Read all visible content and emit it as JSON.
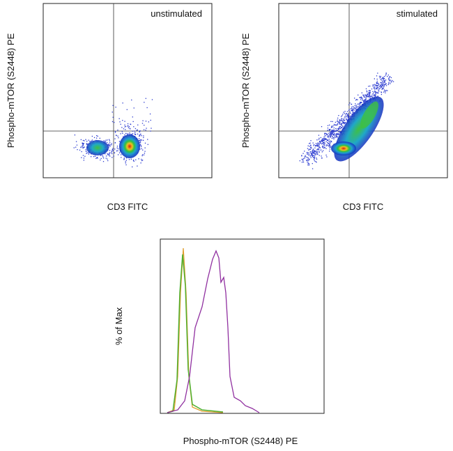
{
  "panels": [
    {
      "label": "unstimulated",
      "x_axis_label": "CD3 FITC",
      "y_axis_label": "Phospho-mTOR (S2448) PE"
    },
    {
      "label": "stimulated",
      "x_axis_label": "CD3 FITC",
      "y_axis_label": "Phospho-mTOR (S2448) PE"
    }
  ],
  "histogram": {
    "x_axis_label": "Phospho-mTOR (S2448) PE",
    "y_axis_label": "% of Max"
  }
}
